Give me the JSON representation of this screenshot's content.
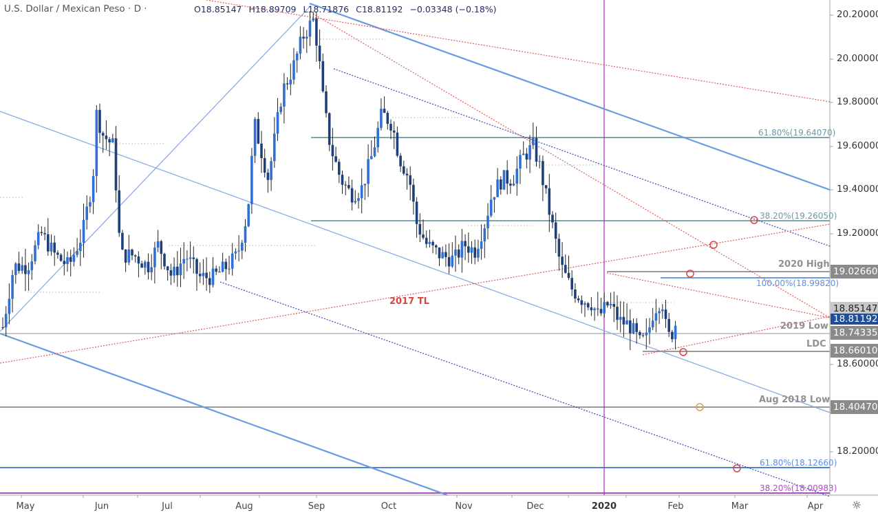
{
  "header": {
    "title": "U.S. Dollar / Mexican Peso · D ·",
    "open": "O18.85147",
    "high": "H18.89709",
    "low": "L18.71876",
    "close": "C18.81192",
    "change": "−0.03348 (−0.18%)"
  },
  "y_axis": {
    "ticks": [
      "20.20000",
      "20.00000",
      "19.80000",
      "19.60000",
      "19.40000",
      "19.20000",
      "18.60000",
      "18.20000"
    ]
  },
  "price_tags": {
    "high_2020": "19.02660",
    "open_value": "18.85147",
    "last_value": "18.81192",
    "low_2019": "18.74335",
    "ldc": "18.66010",
    "aug_2018_low": "18.40470"
  },
  "x_axis": {
    "labels": [
      "May",
      "Jun",
      "Jul",
      "Aug",
      "Sep",
      "Oct",
      "Nov",
      "Dec",
      "2020",
      "Feb",
      "Mar",
      "Apr"
    ]
  },
  "annotations": {
    "fib_618_upper": "61.80%(19.64070)",
    "fib_382_upper": "38.20%(19.26050)",
    "fib_100": "100.00%(18.99820)",
    "fib_618_lower": "61.80%(18.12660)",
    "fib_382_lower": "38.20%(18.00983)",
    "label_2020_high": "2020 High",
    "label_2019_low": "2019 Low",
    "label_ldc": "LDC",
    "label_aug_2018_low": "Aug 2018 Low",
    "label_2017_tl": "2017 TL"
  },
  "colors": {
    "bull_candle": "#2f6fd6",
    "bear_candle": "#1f3f7a",
    "wick": "#222222",
    "fib_teal": "#7fa6ab",
    "fib_blue": "#4a7fd4",
    "fib_purple": "#b04ac5",
    "level_grey": "#9a9a9a",
    "trendline_red": "#e05a55",
    "channel_blue": "#6a9ae0",
    "dotted_navy": "#3344bb",
    "vertical_magenta": "#b027c2"
  },
  "chart_data": {
    "type": "candlestick",
    "title": "U.S. Dollar / Mexican Peso · D",
    "symbol": "USD/MXN",
    "timeframe": "Daily",
    "last_bar": {
      "open": 18.85147,
      "high": 18.89709,
      "low": 18.71876,
      "close": 18.81192,
      "change": -0.03348,
      "change_pct": -0.18
    },
    "xlabel": "",
    "ylabel": "",
    "x_ticks": [
      "May",
      "Jun",
      "Jul",
      "Aug",
      "Sep",
      "Oct",
      "Nov",
      "Dec",
      "2020",
      "Feb",
      "Mar",
      "Apr"
    ],
    "y_ticks": [
      18.2,
      18.4,
      18.6,
      18.8,
      19.0,
      19.2,
      19.4,
      19.6,
      19.8,
      20.0,
      20.2
    ],
    "ylim": [
      17.98,
      20.26
    ],
    "approx_monthly_path": [
      {
        "month": "May-2019",
        "open": 18.75,
        "high": 19.3,
        "low": 18.9,
        "close": 19.1
      },
      {
        "month": "Jun-2019",
        "open": 19.1,
        "high": 19.88,
        "low": 18.95,
        "close": 19.2
      },
      {
        "month": "Jul-2019",
        "open": 19.2,
        "high": 19.35,
        "low": 18.85,
        "close": 19.0
      },
      {
        "month": "Aug-2019",
        "open": 19.0,
        "high": 20.26,
        "low": 18.95,
        "close": 20.1
      },
      {
        "month": "Sep-2019",
        "open": 20.1,
        "high": 20.2,
        "low": 19.33,
        "close": 19.7
      },
      {
        "month": "Oct-2019",
        "open": 19.7,
        "high": 19.87,
        "low": 19.03,
        "close": 19.15
      },
      {
        "month": "Nov-2019",
        "open": 19.15,
        "high": 19.65,
        "low": 19.05,
        "close": 19.55
      },
      {
        "month": "Dec-2019",
        "open": 19.55,
        "high": 19.65,
        "low": 18.85,
        "close": 18.9
      },
      {
        "month": "Jan-2020",
        "open": 18.9,
        "high": 19.03,
        "low": 18.64,
        "close": 18.75
      },
      {
        "month": "Feb-2020 (partial)",
        "open": 18.75,
        "high": 18.97,
        "low": 18.66,
        "close": 18.81
      }
    ],
    "horizontal_levels": [
      {
        "label": "61.80%",
        "value": 19.6407,
        "color": "#7fa6ab"
      },
      {
        "label": "38.20%",
        "value": 19.2605,
        "color": "#7fa6ab"
      },
      {
        "label": "2020 High",
        "value": 19.0266,
        "color": "#9a9a9a"
      },
      {
        "label": "100.00%",
        "value": 18.9982,
        "color": "#4a7fd4"
      },
      {
        "label": "2019 Low",
        "value": 18.74335,
        "color": "#9a9a9a"
      },
      {
        "label": "LDC",
        "value": 18.6601,
        "color": "#9a9a9a"
      },
      {
        "label": "Aug 2018 Low",
        "value": 18.4047,
        "color": "#9a9a9a"
      },
      {
        "label": "61.80%",
        "value": 18.1266,
        "color": "#4a7fd4"
      },
      {
        "label": "38.20%",
        "value": 18.00983,
        "color": "#b04ac5"
      }
    ],
    "trendlines": [
      {
        "label": "2017 TL",
        "style": "dotted red",
        "direction": "ascending"
      },
      {
        "style": "solid blue",
        "direction": "descending channel (upper)"
      },
      {
        "style": "solid blue thin",
        "direction": "descending channel (middle)"
      },
      {
        "style": "solid blue",
        "direction": "descending channel (lower)"
      },
      {
        "style": "dotted navy",
        "direction": "descending"
      },
      {
        "style": "dotted red",
        "direction": "descending (multiple)"
      }
    ],
    "vertical_marker": {
      "label": "2020",
      "color": "#b027c2"
    },
    "legend": null,
    "grid": false
  }
}
